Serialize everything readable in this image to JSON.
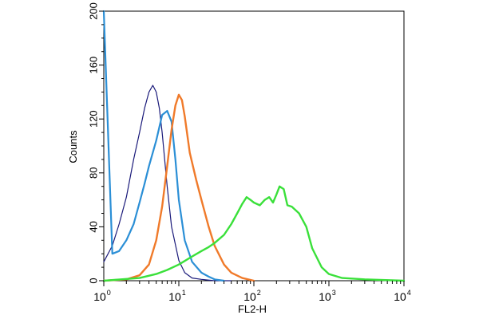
{
  "chart_data": {
    "type": "line",
    "xlabel": "FL2-H",
    "ylabel": "Counts",
    "xscale": "log",
    "xlim": [
      1,
      10000
    ],
    "ylim": [
      0,
      200
    ],
    "grid": false,
    "y_ticks": [
      0,
      40,
      80,
      120,
      160,
      200
    ],
    "x_ticks": [
      {
        "base": "10",
        "exp": "0",
        "value": 1
      },
      {
        "base": "10",
        "exp": "1",
        "value": 10
      },
      {
        "base": "10",
        "exp": "2",
        "value": 100
      },
      {
        "base": "10",
        "exp": "3",
        "value": 1000
      },
      {
        "base": "10",
        "exp": "4",
        "value": 10000
      }
    ],
    "series": [
      {
        "color": "#1a1a7a",
        "width": 1.2,
        "x": [
          1,
          1.3,
          1.6,
          2.0,
          2.5,
          3.0,
          3.5,
          4.0,
          4.5,
          5.0,
          5.5,
          6.0,
          7.0,
          8.0,
          10,
          12,
          15,
          20,
          30,
          50
        ],
        "y": [
          14,
          26,
          42,
          62,
          90,
          110,
          128,
          140,
          145,
          140,
          128,
          110,
          70,
          40,
          15,
          6,
          2,
          1,
          0,
          0
        ]
      },
      {
        "color": "#2b8fd6",
        "width": 2.2,
        "x": [
          1,
          1.3,
          1.6,
          2.0,
          2.5,
          3.0,
          3.5,
          4.0,
          5.0,
          6.0,
          7.0,
          8.0,
          9.0,
          10,
          12,
          15,
          20,
          25,
          30,
          40
        ],
        "y": [
          200,
          20,
          22,
          30,
          42,
          58,
          72,
          85,
          104,
          123,
          126,
          118,
          90,
          60,
          30,
          14,
          6,
          3,
          1,
          0
        ]
      },
      {
        "color": "#f07a2a",
        "width": 2.4,
        "x": [
          1,
          2,
          3,
          4,
          5,
          6,
          7,
          8,
          9,
          10,
          11,
          12,
          14,
          17,
          20,
          25,
          30,
          40,
          50,
          70,
          100
        ],
        "y": [
          0,
          1,
          4,
          12,
          30,
          55,
          85,
          112,
          130,
          138,
          134,
          122,
          95,
          75,
          60,
          40,
          26,
          12,
          6,
          2,
          0
        ]
      },
      {
        "color": "#3ae03a",
        "width": 2.4,
        "x": [
          1,
          3,
          5,
          7,
          10,
          15,
          20,
          25,
          30,
          40,
          50,
          60,
          70,
          80,
          90,
          100,
          120,
          140,
          160,
          180,
          200,
          220,
          250,
          280,
          320,
          400,
          500,
          600,
          800,
          1000,
          1500,
          3000,
          10000
        ],
        "y": [
          0,
          2,
          5,
          8,
          12,
          18,
          22,
          25,
          28,
          34,
          42,
          50,
          57,
          62,
          60,
          58,
          56,
          60,
          62,
          58,
          64,
          70,
          68,
          56,
          55,
          50,
          40,
          24,
          10,
          5,
          2,
          1,
          0
        ]
      }
    ]
  }
}
